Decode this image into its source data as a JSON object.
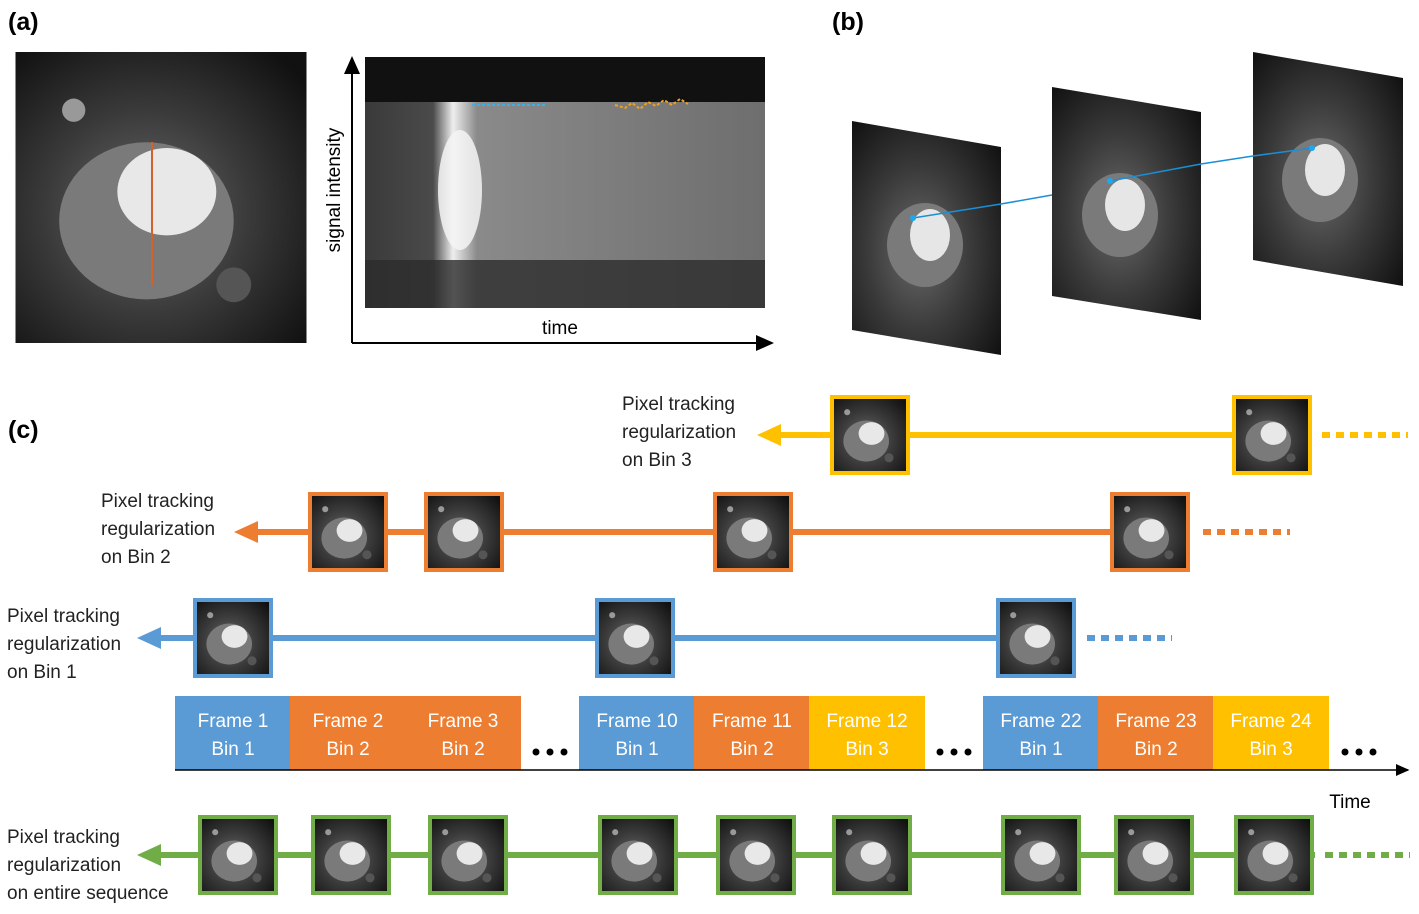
{
  "panel_a": {
    "label": "(a)",
    "y_axis_label": "signal intensity",
    "x_axis_label": "time"
  },
  "panel_b": {
    "label": "(b)"
  },
  "panel_c": {
    "label": "(c)",
    "tracks": [
      {
        "label_lines": [
          "Pixel tracking",
          "regularization",
          "on Bin 3"
        ]
      },
      {
        "label_lines": [
          "Pixel tracking",
          "regularization",
          "on Bin 2"
        ]
      },
      {
        "label_lines": [
          "Pixel tracking",
          "regularization",
          "on Bin 1"
        ]
      },
      {
        "label_lines": [
          "Pixel tracking",
          "regularization",
          "on entire sequence"
        ]
      }
    ],
    "frames": [
      {
        "frame": "Frame 1",
        "bin": "Bin 1"
      },
      {
        "frame": "Frame 2",
        "bin": "Bin 2"
      },
      {
        "frame": "Frame 3",
        "bin": "Bin 2"
      },
      {
        "frame": "Frame 10",
        "bin": "Bin 1"
      },
      {
        "frame": "Frame 11",
        "bin": "Bin 2"
      },
      {
        "frame": "Frame 12",
        "bin": "Bin 3"
      },
      {
        "frame": "Frame 22",
        "bin": "Bin 1"
      },
      {
        "frame": "Frame 23",
        "bin": "Bin 2"
      },
      {
        "frame": "Frame 24",
        "bin": "Bin 3"
      }
    ],
    "time_axis_label": "Time"
  }
}
